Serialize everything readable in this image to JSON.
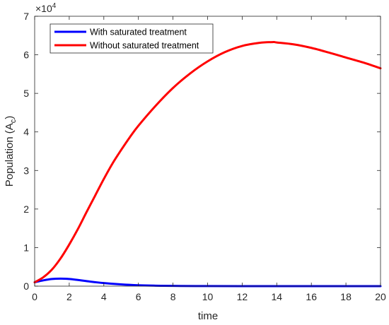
{
  "chart_data": {
    "type": "line",
    "title": "",
    "xlabel": "time",
    "ylabel": "Population (A",
    "ylabel_subscript": "c",
    "ylabel_suffix": ")",
    "y_multiplier_base": "×10",
    "y_multiplier_exponent": "4",
    "xlim": [
      0,
      20
    ],
    "ylim": [
      0,
      70000
    ],
    "x_ticks": [
      0,
      2,
      4,
      6,
      8,
      10,
      12,
      14,
      16,
      18,
      20
    ],
    "y_ticks": [
      0,
      10000,
      20000,
      30000,
      40000,
      50000,
      60000,
      70000
    ],
    "y_tick_labels": [
      "0",
      "1",
      "2",
      "3",
      "4",
      "5",
      "6",
      "7"
    ],
    "grid": false,
    "legend_position": "top-left",
    "series": [
      {
        "name": "With saturated treatment",
        "color": "#0000ff",
        "x": [
          0,
          0.5,
          1,
          1.5,
          2,
          2.5,
          3,
          4,
          5,
          6,
          7,
          8,
          10,
          12,
          14,
          16,
          18,
          20
        ],
        "y": [
          1000,
          1500,
          1850,
          1950,
          1850,
          1600,
          1300,
          800,
          450,
          230,
          120,
          60,
          20,
          10,
          5,
          3,
          2,
          1
        ]
      },
      {
        "name": "Without saturated treatment",
        "color": "#ff0000",
        "x": [
          0,
          0.5,
          1,
          1.5,
          2,
          2.5,
          3,
          3.5,
          4,
          4.5,
          5,
          5.5,
          6,
          7,
          8,
          9,
          10,
          11,
          12,
          13,
          13.8,
          14,
          15,
          16,
          17,
          18,
          19,
          20
        ],
        "y": [
          1000,
          2300,
          4300,
          7200,
          10800,
          14800,
          19200,
          23500,
          27800,
          31800,
          35300,
          38600,
          41600,
          46800,
          51400,
          55200,
          58300,
          60700,
          62300,
          63100,
          63300,
          63200,
          62700,
          61800,
          60600,
          59300,
          58000,
          56500
        ]
      }
    ]
  }
}
